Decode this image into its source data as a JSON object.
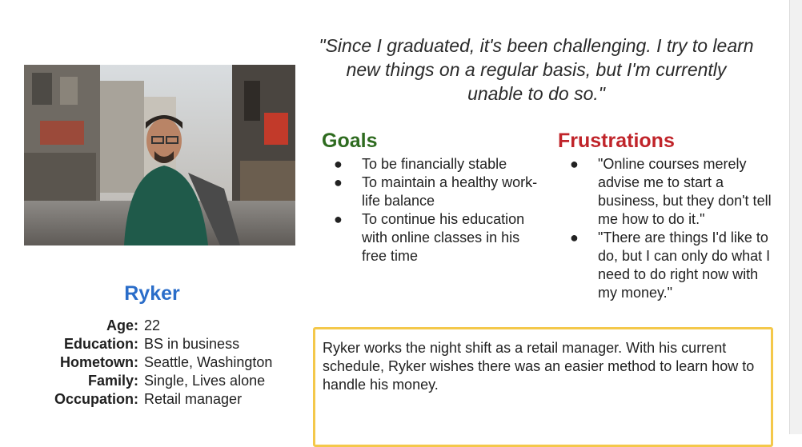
{
  "persona": {
    "name": "Ryker",
    "quote": "\"Since I graduated, it's been challenging. I try to learn new things on a regular basis, but I'm currently unable to do so.\"",
    "photo_icon": "persona-photo",
    "details": [
      {
        "label": "Age:",
        "value": "22"
      },
      {
        "label": "Education:",
        "value": "BS in business"
      },
      {
        "label": "Hometown:",
        "value": "Seattle, Washington"
      },
      {
        "label": "Family:",
        "value": "Single, Lives alone"
      },
      {
        "label": "Occupation:",
        "value": "Retail manager"
      }
    ],
    "bio": "Ryker works the night shift as a retail manager. With his current schedule, Ryker wishes there was an easier method to learn how to handle his money."
  },
  "goals": {
    "heading": "Goals",
    "items": [
      "To be financially stable",
      "To maintain a healthy work-life balance",
      "To continue his education with online classes in his free time"
    ]
  },
  "frustrations": {
    "heading": "Frustrations",
    "items": [
      "\"Online courses merely advise me to start a business, but they don't tell me how to do it.\"",
      "\"There are things I'd like to do, but I can only do what I need to do right now with my money.\""
    ]
  },
  "colors": {
    "goals": "#2e6b1f",
    "frustrations": "#c0242a",
    "name": "#2a6dc9",
    "bio_border": "#f4c84a"
  }
}
